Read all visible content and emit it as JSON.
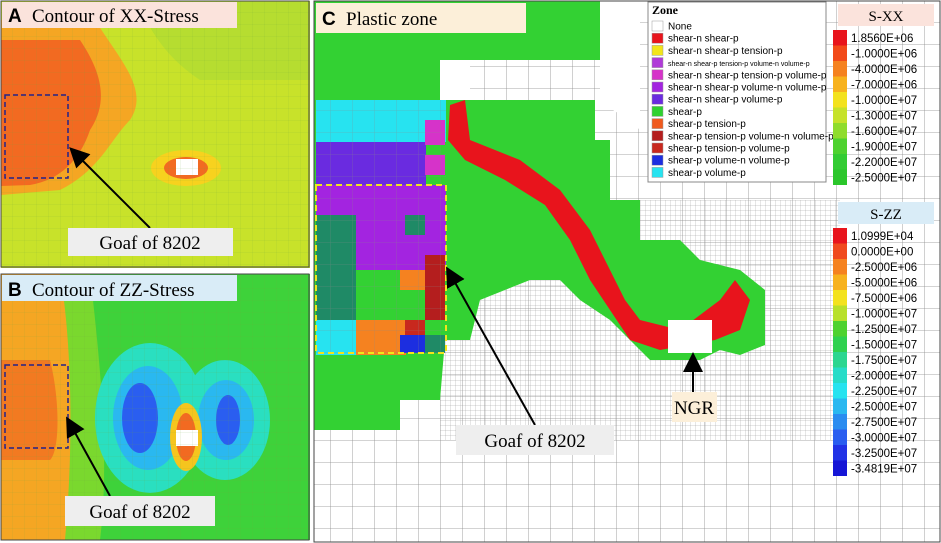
{
  "panels": [
    {
      "letter": "A",
      "title": "Contour of XX-Stress",
      "annotation": "Goaf of 8202"
    },
    {
      "letter": "B",
      "title": "Contour of ZZ-Stress",
      "annotation": "Goaf of 8202"
    },
    {
      "letter": "C",
      "title": "Plastic zone",
      "annotations": [
        "Goaf of 8202",
        "NGR"
      ]
    }
  ],
  "zone_legend": {
    "title": "Zone",
    "entries": [
      {
        "label": "None",
        "color": "#ffffff"
      },
      {
        "label": "shear-n shear-p",
        "color": "#e8141c"
      },
      {
        "label": "shear-n shear-p tension-p",
        "color": "#f2e51b"
      },
      {
        "label": "shear-n shear-p tension-p volume-n volume-p",
        "color": "#b03ad8"
      },
      {
        "label": "shear-n shear-p tension-p volume-p",
        "color": "#d633c9"
      },
      {
        "label": "shear-n shear-p volume-n volume-p",
        "color": "#a324e0"
      },
      {
        "label": "shear-n shear-p volume-p",
        "color": "#6a2be0"
      },
      {
        "label": "shear-p",
        "color": "#2fd12f"
      },
      {
        "label": "shear-p tension-p",
        "color": "#f05a1e"
      },
      {
        "label": "shear-p tension-p volume-n volume-p",
        "color": "#b41e1e"
      },
      {
        "label": "shear-p tension-p volume-p",
        "color": "#c8281e"
      },
      {
        "label": "shear-p volume-n volume-p",
        "color": "#1c2ee0"
      },
      {
        "label": "shear-p volume-p",
        "color": "#27e3f0"
      }
    ]
  },
  "colorbars": [
    {
      "title": "S-XX",
      "labels": [
        "1.8560E+06",
        "-1.0000E+06",
        "-4.0000E+06",
        "-7.0000E+06",
        "-1.0000E+07",
        "-1.3000E+07",
        "-1.6000E+07",
        "-1.9000E+07",
        "-2.2000E+07",
        "-2.5000E+07"
      ],
      "colors": [
        "#e8141c",
        "#f24a1a",
        "#f58220",
        "#f7b21e",
        "#f3e21e",
        "#c6e22a",
        "#8fdc2c",
        "#4ed22f",
        "#33cc33",
        "#2bc62b"
      ]
    },
    {
      "title": "S-ZZ",
      "labels": [
        "1.0999E+04",
        "0.0000E+00",
        "-2.5000E+06",
        "-5.0000E+06",
        "-7.5000E+06",
        "-1.0000E+07",
        "-1.2500E+07",
        "-1.5000E+07",
        "-1.7500E+07",
        "-2.0000E+07",
        "-2.2500E+07",
        "-2.5000E+07",
        "-2.7500E+07",
        "-3.0000E+07",
        "-3.2500E+07",
        "-3.4819E+07"
      ],
      "colors": [
        "#e8141c",
        "#f04a1e",
        "#f58220",
        "#f7b21e",
        "#f3e21e",
        "#b8e02a",
        "#4ed22f",
        "#2fd14f",
        "#2bd690",
        "#27dcc8",
        "#27e3f0",
        "#2ab8f0",
        "#2a8cf0",
        "#2a5ef0",
        "#2233e6",
        "#1616d6"
      ]
    }
  ]
}
